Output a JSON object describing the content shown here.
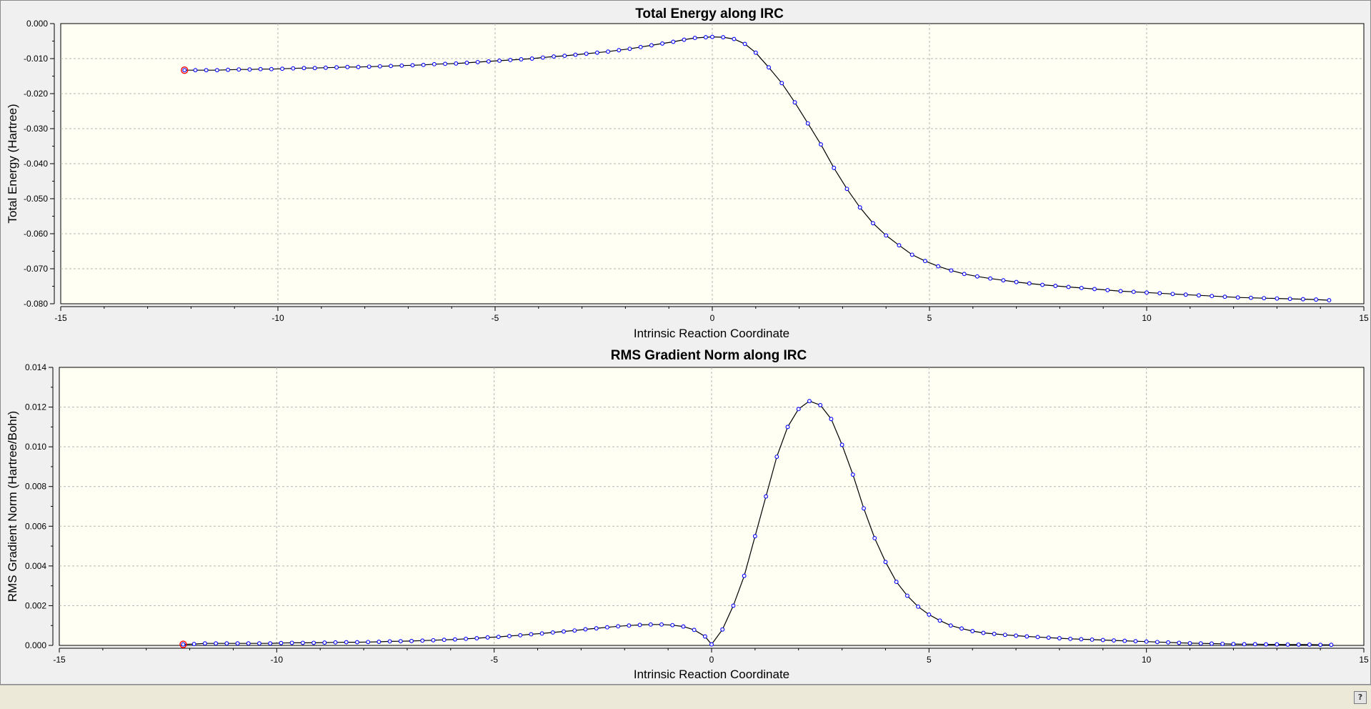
{
  "help_button": {
    "label": "?"
  },
  "chart_data": [
    {
      "type": "line",
      "title": "Total Energy along IRC",
      "xlabel": "Intrinsic Reaction Coordinate",
      "ylabel": "Total Energy (Hartree)",
      "xlim": [
        -15,
        15
      ],
      "ylim": [
        -0.08,
        0.0
      ],
      "x_ticks": [
        -15,
        -10,
        -5,
        0,
        5,
        10,
        15
      ],
      "y_ticks": [
        0.0,
        -0.01,
        -0.02,
        -0.03,
        -0.04,
        -0.05,
        -0.06,
        -0.07,
        -0.08
      ],
      "y_decimals": 3,
      "grid": true,
      "series_color": "#0000ff",
      "line_color": "#000000",
      "highlight_color": "#ff0000",
      "x": [
        -12.15,
        -11.9,
        -11.65,
        -11.4,
        -11.15,
        -10.9,
        -10.65,
        -10.4,
        -10.15,
        -9.9,
        -9.65,
        -9.4,
        -9.15,
        -8.9,
        -8.65,
        -8.4,
        -8.15,
        -7.9,
        -7.65,
        -7.4,
        -7.15,
        -6.9,
        -6.65,
        -6.4,
        -6.15,
        -5.9,
        -5.65,
        -5.4,
        -5.15,
        -4.9,
        -4.65,
        -4.4,
        -4.15,
        -3.9,
        -3.65,
        -3.4,
        -3.15,
        -2.9,
        -2.65,
        -2.4,
        -2.15,
        -1.9,
        -1.65,
        -1.4,
        -1.15,
        -0.9,
        -0.65,
        -0.4,
        -0.15,
        0.0,
        0.25,
        0.5,
        0.75,
        1.0,
        1.3,
        1.6,
        1.9,
        2.2,
        2.5,
        2.8,
        3.1,
        3.4,
        3.7,
        4.0,
        4.3,
        4.6,
        4.9,
        5.2,
        5.5,
        5.8,
        6.1,
        6.4,
        6.7,
        7.0,
        7.3,
        7.6,
        7.9,
        8.2,
        8.5,
        8.8,
        9.1,
        9.4,
        9.7,
        10.0,
        10.3,
        10.6,
        10.9,
        11.2,
        11.5,
        11.8,
        12.1,
        12.4,
        12.7,
        13.0,
        13.3,
        13.6,
        13.9,
        14.2
      ],
      "y": [
        -0.0133,
        -0.0133,
        -0.0133,
        -0.0133,
        -0.0132,
        -0.0131,
        -0.0131,
        -0.013,
        -0.013,
        -0.0129,
        -0.0128,
        -0.0127,
        -0.0127,
        -0.0126,
        -0.0125,
        -0.0124,
        -0.0124,
        -0.0123,
        -0.0122,
        -0.0121,
        -0.012,
        -0.0119,
        -0.0118,
        -0.0116,
        -0.0115,
        -0.0114,
        -0.0112,
        -0.011,
        -0.0108,
        -0.0106,
        -0.0104,
        -0.0102,
        -0.01,
        -0.0097,
        -0.0094,
        -0.0092,
        -0.0089,
        -0.0086,
        -0.0083,
        -0.008,
        -0.0076,
        -0.0072,
        -0.0067,
        -0.0062,
        -0.0057,
        -0.0052,
        -0.0046,
        -0.0041,
        -0.0039,
        -0.0038,
        -0.0039,
        -0.0044,
        -0.0058,
        -0.0083,
        -0.0125,
        -0.017,
        -0.0225,
        -0.0285,
        -0.0345,
        -0.0412,
        -0.0472,
        -0.0525,
        -0.057,
        -0.0605,
        -0.0633,
        -0.066,
        -0.0678,
        -0.0693,
        -0.0705,
        -0.0715,
        -0.0722,
        -0.0728,
        -0.0733,
        -0.0738,
        -0.0742,
        -0.0746,
        -0.0749,
        -0.0752,
        -0.0755,
        -0.0758,
        -0.0761,
        -0.0764,
        -0.0766,
        -0.0768,
        -0.077,
        -0.0772,
        -0.0774,
        -0.0776,
        -0.0778,
        -0.078,
        -0.0782,
        -0.0783,
        -0.0784,
        -0.0785,
        -0.0786,
        -0.0787,
        -0.0788,
        -0.079
      ]
    },
    {
      "type": "line",
      "title": "RMS Gradient Norm along IRC",
      "xlabel": "Intrinsic Reaction Coordinate",
      "ylabel": "RMS Gradient Norm (Hartree/Bohr)",
      "xlim": [
        -15,
        15
      ],
      "ylim": [
        0.0,
        0.014
      ],
      "x_ticks": [
        -15,
        -10,
        -5,
        0,
        5,
        10,
        15
      ],
      "y_ticks": [
        0.0,
        0.002,
        0.004,
        0.006,
        0.008,
        0.01,
        0.012,
        0.014
      ],
      "y_decimals": 3,
      "grid": true,
      "series_color": "#0000ff",
      "line_color": "#000000",
      "highlight_color": "#ff0000",
      "x": [
        -12.15,
        -11.9,
        -11.65,
        -11.4,
        -11.15,
        -10.9,
        -10.65,
        -10.4,
        -10.15,
        -9.9,
        -9.65,
        -9.4,
        -9.15,
        -8.9,
        -8.65,
        -8.4,
        -8.15,
        -7.9,
        -7.65,
        -7.4,
        -7.15,
        -6.9,
        -6.65,
        -6.4,
        -6.15,
        -5.9,
        -5.65,
        -5.4,
        -5.15,
        -4.9,
        -4.65,
        -4.4,
        -4.15,
        -3.9,
        -3.65,
        -3.4,
        -3.15,
        -2.9,
        -2.65,
        -2.4,
        -2.15,
        -1.9,
        -1.65,
        -1.4,
        -1.15,
        -0.9,
        -0.65,
        -0.4,
        -0.15,
        0.0,
        0.25,
        0.5,
        0.75,
        1.0,
        1.25,
        1.5,
        1.75,
        2.0,
        2.25,
        2.5,
        2.75,
        3.0,
        3.25,
        3.5,
        3.75,
        4.0,
        4.25,
        4.5,
        4.75,
        5.0,
        5.25,
        5.5,
        5.75,
        6.0,
        6.25,
        6.5,
        6.75,
        7.0,
        7.25,
        7.5,
        7.75,
        8.0,
        8.25,
        8.5,
        8.75,
        9.0,
        9.25,
        9.5,
        9.75,
        10.0,
        10.25,
        10.5,
        10.75,
        11.0,
        11.25,
        11.5,
        11.75,
        12.0,
        12.25,
        12.5,
        12.75,
        13.0,
        13.25,
        13.5,
        13.75,
        14.0,
        14.25
      ],
      "y": [
        5e-05,
        7e-05,
        0.0001,
        0.0001,
        0.0001,
        0.0001,
        0.0001,
        0.0001,
        0.0001,
        0.00012,
        0.00013,
        0.00013,
        0.00013,
        0.00014,
        0.00015,
        0.00016,
        0.00016,
        0.00017,
        0.00018,
        0.0002,
        0.00021,
        0.00022,
        0.00024,
        0.00026,
        0.00028,
        0.0003,
        0.00033,
        0.00036,
        0.0004,
        0.00043,
        0.00047,
        0.00051,
        0.00056,
        0.0006,
        0.00065,
        0.0007,
        0.00075,
        0.00081,
        0.00086,
        0.00091,
        0.00096,
        0.001,
        0.00103,
        0.00105,
        0.00105,
        0.00102,
        0.00095,
        0.00078,
        0.00045,
        5e-05,
        0.0008,
        0.002,
        0.0035,
        0.0055,
        0.0075,
        0.0095,
        0.011,
        0.0119,
        0.0123,
        0.0121,
        0.0114,
        0.0101,
        0.0086,
        0.0069,
        0.0054,
        0.0042,
        0.0032,
        0.0025,
        0.00195,
        0.00155,
        0.00125,
        0.001,
        0.00085,
        0.00072,
        0.00063,
        0.00058,
        0.00053,
        0.00049,
        0.00045,
        0.00042,
        0.00039,
        0.00036,
        0.00033,
        0.00031,
        0.00029,
        0.00027,
        0.00025,
        0.00023,
        0.00021,
        0.00019,
        0.00017,
        0.00015,
        0.00013,
        0.00011,
        0.0001,
        9e-05,
        8e-05,
        7e-05,
        6e-05,
        6e-05,
        5e-05,
        5e-05,
        4e-05,
        4e-05,
        4e-05,
        3e-05,
        3e-05
      ]
    }
  ]
}
